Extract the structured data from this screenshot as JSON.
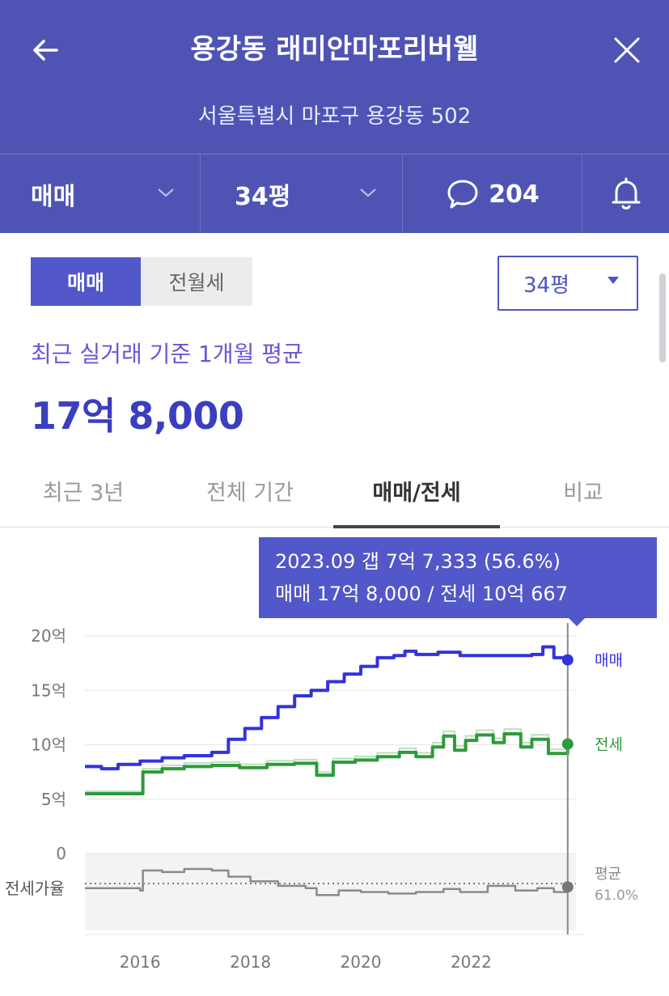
{
  "header": {
    "title": "용강동 래미안마포리버웰",
    "address": "서울특별시 마포구 용강동 502",
    "filters": {
      "deal_type": "매매",
      "area": "34평",
      "comment_count": "204"
    }
  },
  "segment": {
    "active": "매매",
    "inactive": "전월세"
  },
  "area_select": {
    "value": "34평"
  },
  "summary": {
    "label": "최근 실거래 기준 1개월 평균",
    "price": "17억 8,000"
  },
  "tabs": [
    {
      "label": "최근 3년",
      "active": false
    },
    {
      "label": "전체 기간",
      "active": false
    },
    {
      "label": "매매/전세",
      "active": true
    },
    {
      "label": "비교",
      "active": false
    }
  ],
  "tooltip": {
    "line1": "2023.09  갭 7억 7,333 (56.6%)",
    "line2": "매매 17억 8,000 / 전세 10억 667"
  },
  "colors": {
    "header_bg": "#4f54b4",
    "accent": "#5257c9",
    "sale_line": "#3333dd",
    "jeonse_line": "#2f9a3c",
    "ratio_line": "#8a8a8a"
  },
  "chart_data": {
    "type": "line",
    "ylabel": "",
    "xlabel": "",
    "ylim": [
      0,
      20
    ],
    "yticks": [
      "20억",
      "15억",
      "10억",
      "5억",
      "0"
    ],
    "y_tick_values": [
      20,
      15,
      10,
      5,
      0
    ],
    "xticks": [
      "2016",
      "2018",
      "2020",
      "2022"
    ],
    "x_tick_values": [
      2016,
      2018,
      2020,
      2022
    ],
    "xlim": [
      2015.0,
      2023.9
    ],
    "series": [
      {
        "name": "매매",
        "unit": "억",
        "points": [
          [
            2015.0,
            8.0
          ],
          [
            2015.3,
            7.8
          ],
          [
            2015.6,
            8.2
          ],
          [
            2016.0,
            8.5
          ],
          [
            2016.4,
            8.8
          ],
          [
            2016.8,
            9.0
          ],
          [
            2017.3,
            9.3
          ],
          [
            2017.6,
            10.5
          ],
          [
            2017.9,
            11.5
          ],
          [
            2018.2,
            12.5
          ],
          [
            2018.5,
            13.5
          ],
          [
            2018.8,
            14.5
          ],
          [
            2019.1,
            15.0
          ],
          [
            2019.4,
            15.8
          ],
          [
            2019.7,
            16.5
          ],
          [
            2020.0,
            17.2
          ],
          [
            2020.3,
            18.0
          ],
          [
            2020.6,
            18.2
          ],
          [
            2020.8,
            18.6
          ],
          [
            2021.0,
            18.3
          ],
          [
            2021.4,
            18.5
          ],
          [
            2021.8,
            18.2
          ],
          [
            2022.3,
            18.2
          ],
          [
            2022.8,
            18.2
          ],
          [
            2023.1,
            18.3
          ],
          [
            2023.3,
            19.0
          ],
          [
            2023.5,
            18.0
          ],
          [
            2023.75,
            17.8
          ]
        ]
      },
      {
        "name": "전세",
        "unit": "억",
        "points": [
          [
            2015.0,
            5.5
          ],
          [
            2015.6,
            5.5
          ],
          [
            2016.0,
            5.5
          ],
          [
            2016.05,
            7.5
          ],
          [
            2016.4,
            7.8
          ],
          [
            2016.8,
            8.0
          ],
          [
            2017.3,
            8.1
          ],
          [
            2017.8,
            7.9
          ],
          [
            2018.3,
            8.2
          ],
          [
            2018.8,
            8.3
          ],
          [
            2019.2,
            7.2
          ],
          [
            2019.5,
            8.4
          ],
          [
            2019.9,
            8.6
          ],
          [
            2020.3,
            8.9
          ],
          [
            2020.7,
            9.3
          ],
          [
            2021.0,
            8.9
          ],
          [
            2021.3,
            9.8
          ],
          [
            2021.5,
            10.8
          ],
          [
            2021.7,
            9.5
          ],
          [
            2021.9,
            10.4
          ],
          [
            2022.1,
            10.9
          ],
          [
            2022.4,
            10.2
          ],
          [
            2022.6,
            11.0
          ],
          [
            2022.9,
            9.8
          ],
          [
            2023.1,
            10.5
          ],
          [
            2023.4,
            9.2
          ],
          [
            2023.75,
            10.07
          ]
        ]
      },
      {
        "name": "전세가율",
        "label_avg": "평균",
        "avg_value": "61.0%",
        "points": [
          [
            2015.0,
            0.55
          ],
          [
            2015.8,
            0.55
          ],
          [
            2016.0,
            0.52
          ],
          [
            2016.05,
            0.78
          ],
          [
            2016.4,
            0.76
          ],
          [
            2016.8,
            0.8
          ],
          [
            2017.3,
            0.78
          ],
          [
            2017.6,
            0.7
          ],
          [
            2018.0,
            0.64
          ],
          [
            2018.5,
            0.58
          ],
          [
            2019.0,
            0.55
          ],
          [
            2019.2,
            0.46
          ],
          [
            2019.6,
            0.52
          ],
          [
            2020.0,
            0.5
          ],
          [
            2020.5,
            0.48
          ],
          [
            2021.0,
            0.5
          ],
          [
            2021.5,
            0.54
          ],
          [
            2021.8,
            0.5
          ],
          [
            2022.3,
            0.58
          ],
          [
            2022.8,
            0.52
          ],
          [
            2023.2,
            0.55
          ],
          [
            2023.5,
            0.5
          ],
          [
            2023.75,
            0.566
          ]
        ]
      }
    ],
    "end_labels": {
      "sale": "매매",
      "jeonse": "전세"
    },
    "ratio_label": "전세가율",
    "selected_x": 2023.75
  }
}
